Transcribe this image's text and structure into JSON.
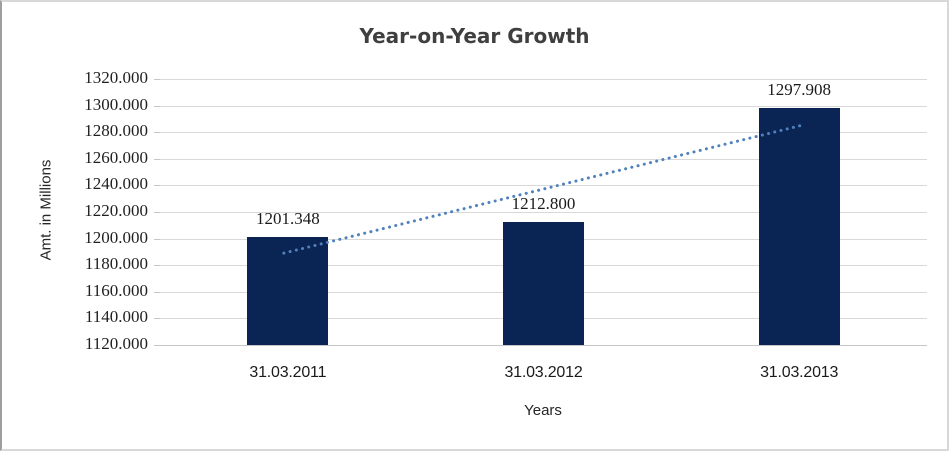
{
  "frame": {
    "background": "#ffffff",
    "border_light": "#d8d8d8",
    "border_dark": "#9e9e9e"
  },
  "chart_data": {
    "type": "bar",
    "title": "Year-on-Year Growth",
    "categories": [
      "31.03.2011",
      "31.03.2012",
      "31.03.2013"
    ],
    "values": [
      1201.348,
      1212.8,
      1297.908
    ],
    "data_labels": [
      "1201.348",
      "1212.800",
      "1297.908"
    ],
    "xlabel": "Years",
    "ylabel": "Amt. in Millions",
    "ylim": [
      1120,
      1320
    ],
    "ytick_step": 20,
    "ytick_labels": [
      "1320.000",
      "1300.000",
      "1280.000",
      "1260.000",
      "1240.000",
      "1220.000",
      "1200.000",
      "1180.000",
      "1160.000",
      "1140.000",
      "1120.000"
    ],
    "grid": "horizontal",
    "legend_position": "none",
    "bar_color": "#0a2454",
    "title_color": "#3f3f3f",
    "axis_text_color": "#1f1f1f",
    "gridline_color": "#d9d9d9",
    "trendline": {
      "type": "linear",
      "style": "dotted",
      "color": "#4f81bd"
    }
  }
}
